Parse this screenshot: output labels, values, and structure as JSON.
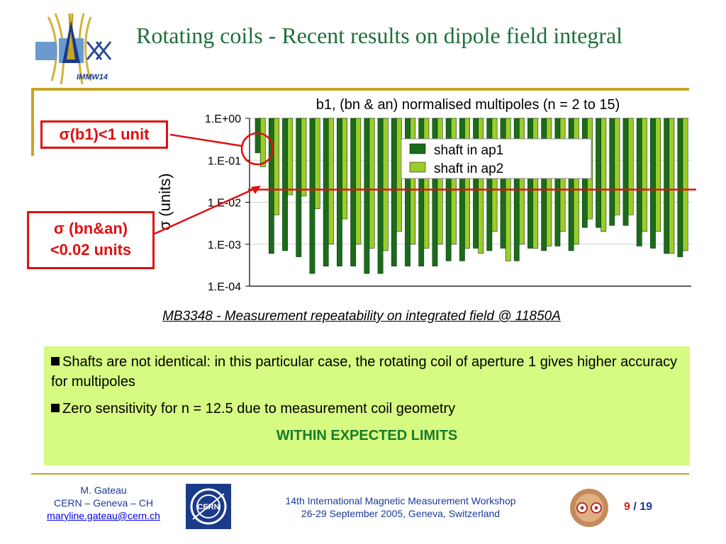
{
  "slide": {
    "title": "Rotating coils - Recent results on dipole field integral",
    "logo_text": "IMMW14"
  },
  "chart_title": "b1, (bn & an) normalised multipoles (n = 2 to 15)",
  "chart_data": {
    "type": "bar",
    "yscale": "log",
    "ylim": [
      0.0001,
      1
    ],
    "ylabel": "σ (units)",
    "ytick_labels": [
      "1.E+00",
      "1.E-01",
      "1.E-02",
      "1.E-03",
      "1.E-04"
    ],
    "yticks": [
      1,
      0.1,
      0.01,
      0.001,
      0.0001
    ],
    "legend_position": "top-right",
    "threshold": 0.02,
    "series": [
      {
        "name": "shaft in ap1",
        "color": "#1b6b1b",
        "values": [
          0.15,
          0.0006,
          0.0007,
          0.0005,
          0.0002,
          0.0003,
          0.0003,
          0.0003,
          0.0002,
          0.0002,
          0.0003,
          0.0003,
          0.0003,
          0.0003,
          0.0004,
          0.0004,
          0.0008,
          0.0007,
          0.0008,
          0.0004,
          0.0008,
          0.0007,
          0.0009,
          0.0007,
          0.0025,
          0.0025,
          0.0028,
          0.0028,
          0.0009,
          0.0008,
          0.0006,
          0.0005
        ]
      },
      {
        "name": "shaft in ap2",
        "color": "#9bcc2a",
        "values": [
          0.07,
          0.005,
          0.015,
          0.014,
          0.007,
          0.001,
          0.004,
          0.001,
          0.0008,
          0.0007,
          0.002,
          0.001,
          0.0008,
          0.001,
          0.001,
          0.0008,
          0.0006,
          0.002,
          0.0004,
          0.001,
          0.0008,
          0.0009,
          0.002,
          0.001,
          0.004,
          0.002,
          0.005,
          0.005,
          0.002,
          0.002,
          0.0006,
          0.0007
        ]
      }
    ]
  },
  "callouts": {
    "b1": "σ(b1)<1 unit",
    "bn_line1": "σ (bn&an)",
    "bn_line2": "<0.02 units"
  },
  "caption": "MB3348 - Measurement repeatability on integrated field @ 11850A",
  "notes": {
    "item1": "Shafts are not identical: in this particular case, the rotating coil of aperture 1 gives higher accuracy for multipoles",
    "item2": "Zero sensitivity for n = 12.5 due to measurement coil geometry",
    "conclusion": "WITHIN EXPECTED LIMITS"
  },
  "footer": {
    "author_name": "M. Gateau",
    "author_org": "CERN – Geneva – CH",
    "author_email": "maryline.gateau@cern.ch",
    "cern_logo_text": "CERN",
    "workshop_line1": "14th International Magnetic Measurement Workshop",
    "workshop_line2": "26-29 September 2005, Geneva, Switzerland",
    "page_current": "9",
    "page_separator": " / ",
    "page_total": "19"
  },
  "colors": {
    "title": "#1f6f3a",
    "accent_rule": "#c8a424",
    "callout_red": "#e01010",
    "notes_bg": "#d6fa82",
    "footer_text": "#1a3a9a"
  }
}
